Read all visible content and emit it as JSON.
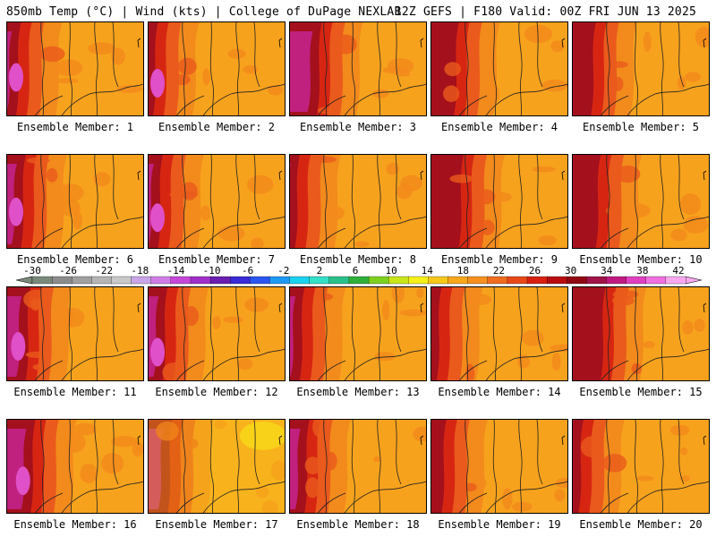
{
  "header": {
    "left_title": "850mb Temp (°C) | Wind (kts) | College of DuPage NEXLAB",
    "right_title": "12Z GEFS | F180 Valid: 00Z FRI JUN 13 2025"
  },
  "panels": [
    {
      "label": "Ensemble Member: 1"
    },
    {
      "label": "Ensemble Member: 2"
    },
    {
      "label": "Ensemble Member: 3"
    },
    {
      "label": "Ensemble Member: 4"
    },
    {
      "label": "Ensemble Member: 5"
    },
    {
      "label": "Ensemble Member: 6"
    },
    {
      "label": "Ensemble Member: 7"
    },
    {
      "label": "Ensemble Member: 8"
    },
    {
      "label": "Ensemble Member: 9"
    },
    {
      "label": "Ensemble Member: 10"
    },
    {
      "label": "Ensemble Member: 11"
    },
    {
      "label": "Ensemble Member: 12"
    },
    {
      "label": "Ensemble Member: 13"
    },
    {
      "label": "Ensemble Member: 14"
    },
    {
      "label": "Ensemble Member: 15"
    },
    {
      "label": "Ensemble Member: 16"
    },
    {
      "label": "Ensemble Member: 17"
    },
    {
      "label": "Ensemble Member: 18"
    },
    {
      "label": "Ensemble Member: 19"
    },
    {
      "label": "Ensemble Member: 20"
    }
  ],
  "colorbar": {
    "tick_labels": [
      "-30",
      "-26",
      "-22",
      "-18",
      "-14",
      "-10",
      "-6",
      "-2",
      "2",
      "6",
      "10",
      "14",
      "18",
      "22",
      "26",
      "30",
      "34",
      "38",
      "42"
    ],
    "colors": [
      "#7a8a7a",
      "#8c8c8c",
      "#a0a0a0",
      "#b4b4b4",
      "#c8c8c8",
      "#c9a5e8",
      "#d07ce6",
      "#c548d8",
      "#a030c8",
      "#6a1fb0",
      "#3a2bd8",
      "#2a55f0",
      "#1e9af5",
      "#19d2f0",
      "#33e0c8",
      "#2ac08a",
      "#30b03a",
      "#7ed020",
      "#c8e61a",
      "#f5f01a",
      "#f8c81a",
      "#f8a81a",
      "#f7901e",
      "#f06c1e",
      "#e84818",
      "#d82010",
      "#b80c10",
      "#900814",
      "#a0144a",
      "#c01a80",
      "#e040c0",
      "#f070e0",
      "#f8a8f0"
    ]
  },
  "map_colors": {
    "warm_base": "#f7a21c",
    "orange": "#f28a1c",
    "red_orange": "#ea5a1c",
    "red": "#d62612",
    "dark_red": "#a4101c",
    "magenta": "#c0207e",
    "pink": "#e050c8",
    "yellow": "#f8d21a"
  }
}
